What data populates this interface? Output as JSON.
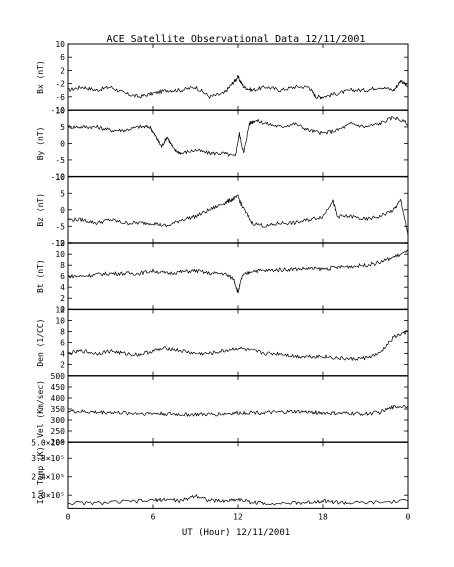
{
  "chart_data": {
    "type": "line",
    "title": "ACE Satellite Observational Data   12/11/2001",
    "xlabel": "UT (Hour)  12/11/2001",
    "x_ticks": [
      "0",
      "6",
      "12",
      "18",
      "0"
    ],
    "xlim": [
      0,
      24
    ],
    "panels": [
      {
        "ylabel": "Bx (nT)",
        "ylim": [
          -10,
          10
        ],
        "y_ticks": [
          "10",
          "6",
          "2",
          "-2",
          "-6",
          "-10"
        ],
        "y_tick_values": [
          10,
          6,
          2,
          -2,
          -6,
          -10
        ],
        "x": [
          0,
          1,
          2,
          3,
          4,
          5,
          6,
          7,
          8,
          9,
          10,
          11,
          11.6,
          12,
          12.4,
          13,
          14,
          15,
          16,
          17,
          17.5,
          18,
          19,
          20,
          21,
          22,
          23,
          23.5,
          24
        ],
        "values": [
          -4,
          -3,
          -4,
          -3,
          -5,
          -6,
          -5,
          -4,
          -4,
          -3,
          -6,
          -5,
          -2,
          0,
          -3,
          -4,
          -3,
          -4,
          -3,
          -3,
          -6,
          -6,
          -5,
          -4,
          -4,
          -3,
          -4,
          -1,
          -3
        ]
      },
      {
        "ylabel": "By (nT)",
        "ylim": [
          -10,
          10
        ],
        "y_ticks": [
          "10",
          "5",
          "0",
          "-5",
          "-10"
        ],
        "y_tick_values": [
          10,
          5,
          0,
          -5,
          -10
        ],
        "x": [
          0,
          1,
          2,
          3,
          4,
          5,
          5.8,
          6.2,
          6.6,
          7,
          7.5,
          8,
          9,
          10,
          11,
          11.8,
          12.1,
          12.4,
          12.8,
          13.2,
          14,
          15,
          16,
          17,
          18,
          19,
          20,
          21,
          22,
          23,
          24
        ],
        "values": [
          5,
          5,
          5,
          4,
          4,
          5,
          5,
          2,
          -1,
          2,
          -2,
          -3,
          -2,
          -3,
          -3,
          -4,
          3,
          -3,
          6,
          7,
          6,
          5,
          6,
          4,
          3,
          4,
          6,
          5,
          6,
          8,
          6
        ]
      },
      {
        "ylabel": "Bz (nT)",
        "ylim": [
          -10,
          10
        ],
        "y_ticks": [
          "10",
          "5",
          "0",
          "-5",
          "-10"
        ],
        "y_tick_values": [
          10,
          5,
          0,
          -5,
          -10
        ],
        "x": [
          0,
          1,
          2,
          3,
          4,
          5,
          6,
          7,
          8,
          9,
          10,
          11,
          11.5,
          12,
          12.3,
          13,
          14,
          15,
          16,
          17,
          18,
          18.7,
          19,
          20,
          21,
          22,
          23,
          23.5,
          24
        ],
        "values": [
          -3,
          -3,
          -4,
          -3,
          -4,
          -4,
          -4,
          -5,
          -3,
          -2,
          0,
          2,
          3,
          4,
          1,
          -4,
          -5,
          -4,
          -4,
          -3,
          -2,
          3,
          -2,
          -2,
          -3,
          -2,
          0,
          3,
          -8
        ]
      },
      {
        "ylabel": "Bt (nT)",
        "ylim": [
          0,
          12
        ],
        "y_ticks": [
          "12",
          "10",
          "8",
          "6",
          "4",
          "2",
          "0"
        ],
        "y_tick_values": [
          12,
          10,
          8,
          6,
          4,
          2,
          0
        ],
        "x": [
          0,
          1,
          2,
          3,
          4,
          5,
          6,
          7,
          8,
          9,
          10,
          11,
          11.7,
          12,
          12.3,
          13,
          14,
          15,
          16,
          17,
          18,
          19,
          20,
          21,
          22,
          23,
          24
        ],
        "values": [
          6,
          6,
          6.3,
          6.5,
          6.5,
          6.5,
          7,
          6.5,
          6.8,
          7,
          6.5,
          6.5,
          5.5,
          3,
          6,
          7,
          7,
          7.2,
          7.3,
          7.4,
          7.3,
          7.6,
          7.8,
          8,
          8.5,
          9.5,
          10.5
        ]
      },
      {
        "ylabel": "Den (1/CC)",
        "ylim": [
          0,
          12
        ],
        "y_ticks": [
          "12",
          "10",
          "8",
          "6",
          "4",
          "2"
        ],
        "y_tick_values": [
          12,
          10,
          8,
          6,
          4,
          2
        ],
        "x": [
          0,
          1,
          2,
          3,
          4,
          5,
          6,
          7,
          8,
          9,
          10,
          11,
          12,
          13,
          14,
          15,
          16,
          17,
          18,
          19,
          20,
          21,
          22,
          23,
          24
        ],
        "values": [
          4,
          4.5,
          4,
          4.5,
          4,
          3.8,
          4.5,
          5,
          4.5,
          4,
          4,
          4.5,
          5,
          4.5,
          4,
          4,
          3.5,
          3.5,
          3.5,
          3.2,
          3,
          3.2,
          4,
          7,
          8
        ]
      },
      {
        "ylabel": "Vel (Km/sec)",
        "ylim": [
          200,
          500
        ],
        "y_ticks": [
          "500",
          "450",
          "400",
          "350",
          "300",
          "250",
          "200"
        ],
        "y_tick_values": [
          500,
          450,
          400,
          350,
          300,
          250,
          200
        ],
        "x": [
          0,
          1,
          2,
          3,
          4,
          5,
          6,
          7,
          8,
          9,
          10,
          11,
          12,
          13,
          14,
          15,
          16,
          17,
          18,
          19,
          20,
          21,
          22,
          23,
          24
        ],
        "values": [
          340,
          338,
          335,
          335,
          332,
          330,
          330,
          328,
          325,
          325,
          325,
          328,
          332,
          335,
          333,
          335,
          338,
          336,
          332,
          330,
          330,
          328,
          335,
          360,
          365
        ]
      },
      {
        "ylabel": "Ion Temp (K)",
        "ylim": [
          0,
          500000
        ],
        "y_ticks": [
          "5.0×10⁵",
          "3.8×10⁵",
          "2.4×10⁵",
          "1.0×10⁵"
        ],
        "y_tick_values": [
          500000,
          380000,
          240000,
          100000
        ],
        "x": [
          0,
          2,
          4,
          6,
          7,
          8,
          9,
          10,
          11,
          12,
          13,
          14,
          16,
          17,
          18,
          19,
          20,
          22,
          24
        ],
        "values": [
          40000,
          40000,
          50000,
          60000,
          70000,
          55000,
          100000,
          60000,
          55000,
          70000,
          45000,
          40000,
          40000,
          45000,
          60000,
          45000,
          40000,
          45000,
          55000
        ]
      }
    ]
  }
}
